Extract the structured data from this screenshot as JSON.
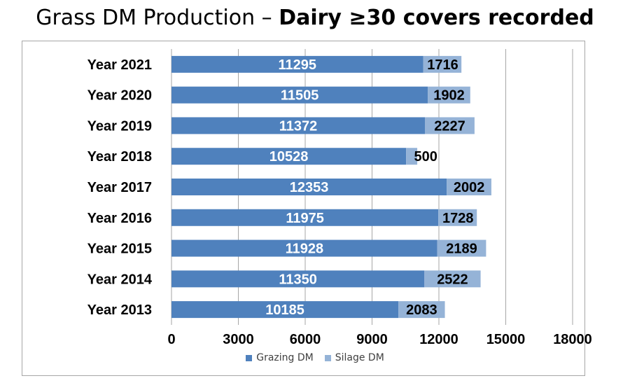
{
  "title": {
    "prefix": "Grass DM Production – ",
    "bold": "Dairy ≥30 covers recorded"
  },
  "colors": {
    "grazing": "#4f81bd",
    "silage": "#95b3d7",
    "grid": "#a6a6a6"
  },
  "chart_data": {
    "type": "bar",
    "orientation": "horizontal",
    "stacked": true,
    "title": "Grass DM Production – Dairy ≥30 covers recorded",
    "categories": [
      "Year 2021",
      "Year 2020",
      "Year 2019",
      "Year 2018",
      "Year 2017",
      "Year 2016",
      "Year 2015",
      "Year 2014",
      "Year 2013"
    ],
    "series": [
      {
        "name": "Grazing DM",
        "values": [
          11295,
          11505,
          11372,
          10528,
          12353,
          11975,
          11928,
          11350,
          10185
        ]
      },
      {
        "name": "Silage DM",
        "values": [
          1716,
          1902,
          2227,
          500,
          2002,
          1728,
          2189,
          2522,
          2083
        ]
      }
    ],
    "xlim": [
      0,
      18000
    ],
    "xticks": [
      0,
      3000,
      6000,
      9000,
      12000,
      15000,
      18000
    ],
    "grid": true,
    "legend_position": "bottom"
  }
}
